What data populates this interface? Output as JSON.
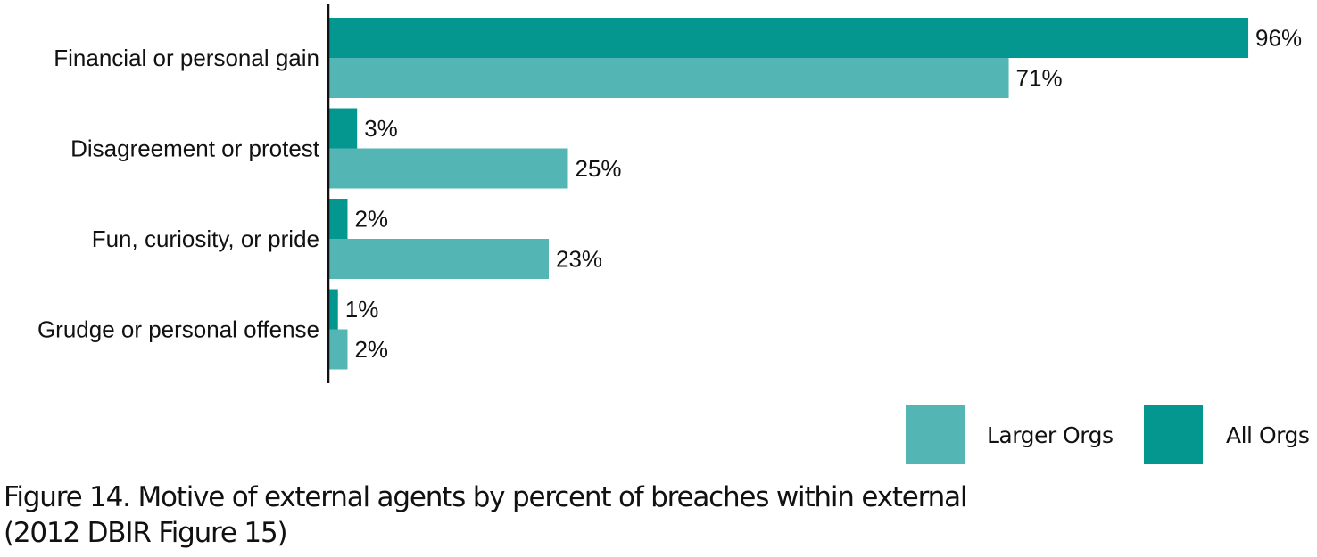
{
  "chart_data": {
    "type": "bar",
    "orientation": "horizontal",
    "categories": [
      "Financial or personal gain",
      "Disagreement or protest",
      "Fun, curiosity, or pride",
      "Grudge or personal offense"
    ],
    "series": [
      {
        "name": "All Orgs",
        "color": "#049790",
        "values": [
          96,
          3,
          2,
          1
        ],
        "labels": [
          "96%",
          "3%",
          "2%",
          "1%"
        ]
      },
      {
        "name": "Larger Orgs",
        "color": "#53b6b4",
        "values": [
          71,
          25,
          23,
          2
        ],
        "labels": [
          "71%",
          "25%",
          "23%",
          "2%"
        ]
      }
    ],
    "xlim": [
      0,
      100
    ],
    "unit": "%",
    "grid": false,
    "legend": {
      "placement": "bottom-right",
      "entries": [
        {
          "name": "Larger Orgs",
          "color": "#53b6b4"
        },
        {
          "name": "All Orgs",
          "color": "#049790"
        }
      ]
    }
  },
  "caption": {
    "line1": "Figure 14. Motive of external agents by percent of breaches within external",
    "line2": "(2012 DBIR Figure 15)"
  }
}
